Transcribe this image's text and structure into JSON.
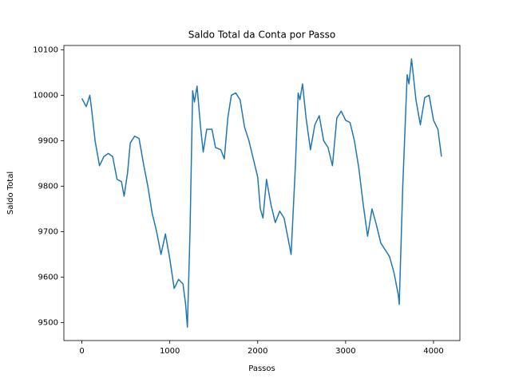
{
  "chart_data": {
    "type": "line",
    "title": "Saldo Total da Conta por Passo",
    "x_label": "Passos",
    "y_label": "Saldo Total",
    "x": [
      0,
      50,
      90,
      110,
      150,
      200,
      250,
      300,
      350,
      400,
      450,
      480,
      520,
      550,
      600,
      650,
      700,
      750,
      800,
      850,
      900,
      950,
      1000,
      1050,
      1100,
      1150,
      1180,
      1200,
      1230,
      1260,
      1280,
      1310,
      1350,
      1380,
      1420,
      1480,
      1520,
      1580,
      1620,
      1660,
      1700,
      1750,
      1800,
      1850,
      1900,
      1950,
      2000,
      2030,
      2060,
      2100,
      2150,
      2200,
      2250,
      2300,
      2350,
      2380,
      2430,
      2460,
      2480,
      2510,
      2550,
      2600,
      2650,
      2700,
      2750,
      2800,
      2850,
      2900,
      2950,
      3000,
      3050,
      3100,
      3150,
      3200,
      3250,
      3300,
      3350,
      3400,
      3450,
      3500,
      3550,
      3600,
      3610,
      3650,
      3700,
      3720,
      3750,
      3800,
      3850,
      3900,
      3950,
      4000,
      4050,
      4090
    ],
    "series": [
      {
        "name": "Saldo Total",
        "color": "#1f77b4",
        "values": [
          9993,
          9975,
          10000,
          9970,
          9900,
          9845,
          9865,
          9872,
          9865,
          9815,
          9810,
          9778,
          9830,
          9895,
          9910,
          9905,
          9850,
          9800,
          9740,
          9700,
          9650,
          9695,
          9640,
          9575,
          9595,
          9585,
          9540,
          9490,
          9700,
          10010,
          9985,
          10020,
          9930,
          9875,
          9925,
          9925,
          9885,
          9880,
          9860,
          9950,
          10000,
          10005,
          9990,
          9930,
          9900,
          9860,
          9820,
          9750,
          9730,
          9815,
          9760,
          9720,
          9745,
          9730,
          9680,
          9650,
          9850,
          10005,
          9990,
          10025,
          9950,
          9880,
          9935,
          9955,
          9900,
          9885,
          9845,
          9950,
          9965,
          9945,
          9940,
          9900,
          9840,
          9760,
          9690,
          9750,
          9715,
          9675,
          9660,
          9645,
          9610,
          9560,
          9540,
          9800,
          10045,
          10025,
          10080,
          9990,
          9935,
          9995,
          10000,
          9945,
          9925,
          9865
        ]
      }
    ],
    "xlim": [
      -205,
      4300
    ],
    "ylim": [
      9460.5,
      10109.5
    ],
    "xticks": [
      0,
      1000,
      2000,
      3000,
      4000
    ],
    "yticks": [
      9500,
      9600,
      9700,
      9800,
      9900,
      10000,
      10100
    ],
    "grid": false
  }
}
